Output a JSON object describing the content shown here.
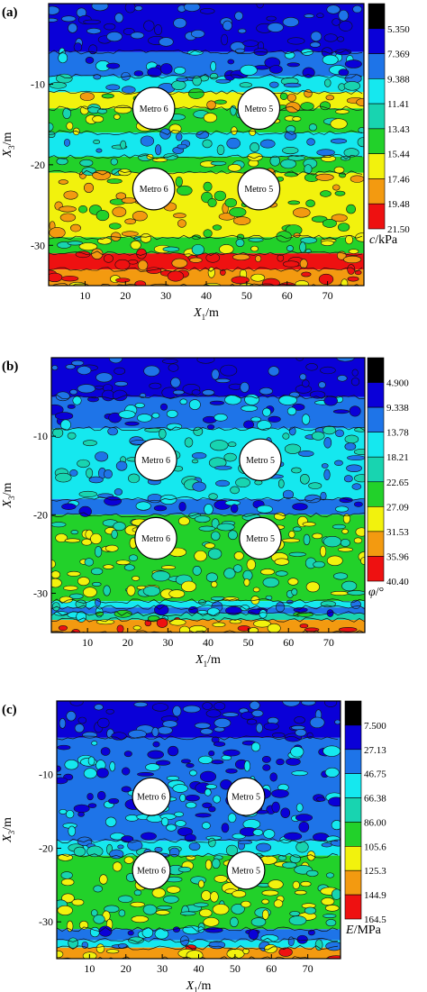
{
  "chart_data": [
    {
      "type": "heatmap",
      "panel_label": "(a)",
      "xlabel_main": "X",
      "xlabel_sub": "1",
      "xlabel_unit": "/m",
      "ylabel_main": "X",
      "ylabel_sub": "3",
      "ylabel_unit": "/m",
      "x_ticks": [
        10,
        20,
        30,
        40,
        50,
        60,
        70
      ],
      "y_ticks": [
        -10,
        -20,
        -30
      ],
      "xlim": [
        1,
        79
      ],
      "ylim": [
        -35,
        0
      ],
      "colorbar_levels": [
        "5.350",
        "7.369",
        "9.388",
        "11.41",
        "13.43",
        "15.44",
        "17.46",
        "19.48",
        "21.50"
      ],
      "colorbar_label_main": "c",
      "colorbar_label_rest": "/kPa",
      "colors": [
        "#000000",
        "#0a00d8",
        "#1e74e8",
        "#15e8ef",
        "#18d4b0",
        "#22d12a",
        "#f2f20d",
        "#f39a10",
        "#ee1111"
      ],
      "bands": [
        {
          "from": 0,
          "to": -6,
          "level": 1
        },
        {
          "from": -6,
          "to": -9,
          "level": 2
        },
        {
          "from": -9,
          "to": -11,
          "level": 3
        },
        {
          "from": -11,
          "to": -13,
          "level": 6
        },
        {
          "from": -13,
          "to": -16,
          "level": 5
        },
        {
          "from": -16,
          "to": -19,
          "level": 3
        },
        {
          "from": -19,
          "to": -21,
          "level": 5
        },
        {
          "from": -21,
          "to": -29,
          "level": 6
        },
        {
          "from": -29,
          "to": -31,
          "level": 5
        },
        {
          "from": -31,
          "to": -33,
          "level": 8
        },
        {
          "from": -33,
          "to": -35,
          "level": 7
        }
      ],
      "tunnels": [
        {
          "label": "Metro 6",
          "x": 27,
          "y": -13
        },
        {
          "label": "Metro 5",
          "x": 53,
          "y": -13
        },
        {
          "label": "Metro 6",
          "x": 27,
          "y": -23
        },
        {
          "label": "Metro 5",
          "x": 53,
          "y": -23
        }
      ],
      "tunnel_radius": 4.5
    },
    {
      "type": "heatmap",
      "panel_label": "(b)",
      "xlabel_main": "X",
      "xlabel_sub": "1",
      "xlabel_unit": "/m",
      "ylabel_main": "X",
      "ylabel_sub": "3",
      "ylabel_unit": "/m",
      "x_ticks": [
        10,
        20,
        30,
        40,
        50,
        60,
        70
      ],
      "y_ticks": [
        -10,
        -20,
        -30
      ],
      "xlim": [
        1,
        79
      ],
      "ylim": [
        -35,
        0
      ],
      "colorbar_levels": [
        "4.900",
        "9.338",
        "13.78",
        "18.21",
        "22.65",
        "27.09",
        "31.53",
        "35.96",
        "40.40"
      ],
      "colorbar_label_main": "φ",
      "colorbar_label_rest": "/°",
      "colors": [
        "#000000",
        "#0a00d8",
        "#1e74e8",
        "#15e8ef",
        "#18d4b0",
        "#22d12a",
        "#f2f20d",
        "#f39a10",
        "#ee1111"
      ],
      "bands": [
        {
          "from": 0,
          "to": -5,
          "level": 1
        },
        {
          "from": -5,
          "to": -9,
          "level": 2
        },
        {
          "from": -9,
          "to": -18,
          "level": 3
        },
        {
          "from": -18,
          "to": -20,
          "level": 2
        },
        {
          "from": -20,
          "to": -31,
          "level": 5
        },
        {
          "from": -31,
          "to": -31.8,
          "level": 3
        },
        {
          "from": -31.8,
          "to": -32.6,
          "level": 2
        },
        {
          "from": -32.6,
          "to": -33.4,
          "level": 4
        },
        {
          "from": -33.4,
          "to": -35,
          "level": 7
        }
      ],
      "tunnels": [
        {
          "label": "Metro 6",
          "x": 27,
          "y": -13
        },
        {
          "label": "Metro 5",
          "x": 53,
          "y": -13
        },
        {
          "label": "Metro 6",
          "x": 27,
          "y": -23
        },
        {
          "label": "Metro 5",
          "x": 53,
          "y": -23
        }
      ],
      "tunnel_radius": 4.5
    },
    {
      "type": "heatmap",
      "panel_label": "(c)",
      "xlabel_main": "X",
      "xlabel_sub": "1",
      "xlabel_unit": "/m",
      "ylabel_main": "X",
      "ylabel_sub": "3",
      "ylabel_unit": "/m",
      "x_ticks": [
        10,
        20,
        30,
        40,
        50,
        60,
        70
      ],
      "y_ticks": [
        -10,
        -20,
        -30
      ],
      "xlim": [
        1,
        79
      ],
      "ylim": [
        -35,
        0
      ],
      "colorbar_levels": [
        "7.500",
        "27.13",
        "46.75",
        "66.38",
        "86.00",
        "105.6",
        "125.3",
        "144.9",
        "164.5"
      ],
      "colorbar_label_main": "E",
      "colorbar_label_rest": "/MPa",
      "colors": [
        "#000000",
        "#0a00d8",
        "#1e74e8",
        "#15e8ef",
        "#18d4b0",
        "#22d12a",
        "#f2f20d",
        "#f39a10",
        "#ee1111"
      ],
      "bands": [
        {
          "from": 0,
          "to": -5,
          "level": 1
        },
        {
          "from": -5,
          "to": -19,
          "level": 2
        },
        {
          "from": -19,
          "to": -21,
          "level": 3
        },
        {
          "from": -21,
          "to": -31,
          "level": 5
        },
        {
          "from": -31,
          "to": -32.5,
          "level": 2
        },
        {
          "from": -32.5,
          "to": -33.5,
          "level": 3
        },
        {
          "from": -33.5,
          "to": -35,
          "level": 7
        }
      ],
      "tunnels": [
        {
          "label": "Metro 6",
          "x": 27,
          "y": -13
        },
        {
          "label": "Metro 5",
          "x": 53,
          "y": -13
        },
        {
          "label": "Metro 6",
          "x": 27,
          "y": -23
        },
        {
          "label": "Metro 5",
          "x": 53,
          "y": -23
        }
      ],
      "tunnel_radius": 4.5
    }
  ]
}
